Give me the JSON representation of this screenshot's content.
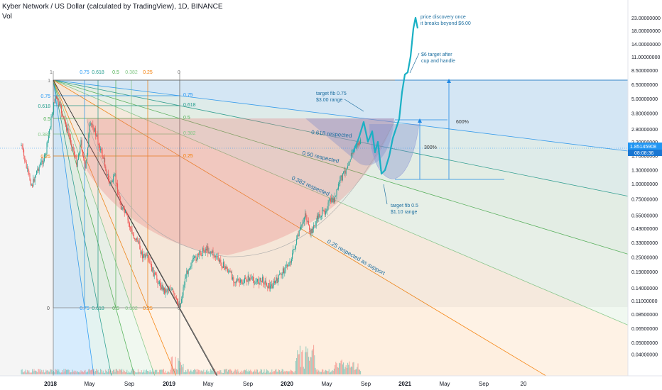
{
  "header": {
    "title": "Kyber Network / US Dollar (calculated by TradingView), 1D, BINANCE",
    "vol_label": "Vol"
  },
  "chart_data": {
    "type": "candlestick",
    "symbol": "KNC/USD",
    "interval": "1D",
    "exchange": "BINANCE",
    "y_scale": "log",
    "current_price": "1.85145908",
    "countdown": "08:08:36",
    "price_axis": [
      "23.00000000",
      "18.00000000",
      "14.00000000",
      "11.00000000",
      "8.50000000",
      "6.50000000",
      "5.00000000",
      "3.80000000",
      "2.80000000",
      "2.20000000",
      "1.70000000",
      "1.30000000",
      "1.00000000",
      "0.75000000",
      "0.55000000",
      "0.43000000",
      "0.33000000",
      "0.25000000",
      "0.19000000",
      "0.14000000",
      "0.11000000",
      "0.08500000",
      "0.06500000",
      "0.05000000",
      "0.04000000"
    ],
    "time_axis": [
      "2018",
      "May",
      "Sep",
      "2019",
      "May",
      "Sep",
      "2020",
      "May",
      "Sep",
      "2021",
      "May",
      "Sep",
      "20"
    ],
    "fib_top_labels": [
      "1",
      "0.75",
      "0.618",
      "0.5",
      "0.382",
      "0.25",
      "0"
    ],
    "fib_left_labels": [
      "1",
      "0.75",
      "0.618",
      "0.5",
      "0.382",
      "0.25"
    ],
    "fib_bottom_labels": [
      "0",
      "0.75",
      "0.618",
      "0.5",
      "0.382",
      "0.25",
      "0"
    ],
    "fib_fan_labels": [
      "0.75",
      "0.618",
      "0.5",
      "0.382",
      "0.25"
    ],
    "annotations": {
      "fib618": "0.618 respected",
      "fib50": "0.50 respected",
      "fib382": "0.382 respected",
      "fib25": "0.25 respected as support",
      "pct300": "300%",
      "pct600": "600%",
      "target075_1": "target fib 0.75",
      "target075_2": "$3.00 range",
      "target05_1": "target fib 0.5",
      "target05_2": "$1.10 range",
      "six_1": "$6 target after",
      "six_2": "cup and handle",
      "disc_1": "price discovery once",
      "disc_2": "it breaks beyond $6.00"
    },
    "colors": {
      "up": "#26a69a",
      "down": "#ef5350",
      "projection": "#1ab0c4",
      "fib_075": "#2196f3",
      "fib_0618": "#1e9a8a",
      "fib_05": "#4caf50",
      "fib_0382": "#81c784",
      "fib_025": "#f57c00",
      "current_price_bg": "#2196f3"
    }
  }
}
